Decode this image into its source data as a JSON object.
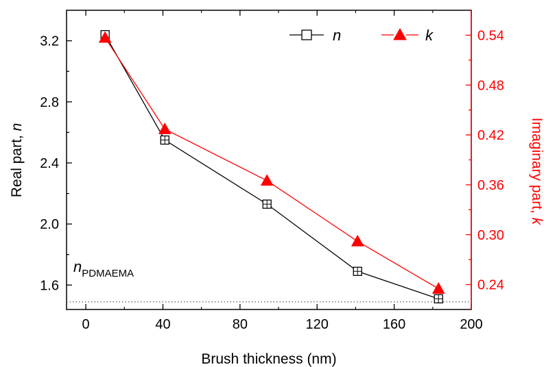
{
  "chart_data": {
    "type": "line",
    "x_axis": {
      "label": "Brush thickness (nm)",
      "range": [
        -10,
        200
      ],
      "ticks": [
        0,
        40,
        80,
        120,
        160,
        200
      ],
      "tick_labels": [
        "0",
        "40",
        "80",
        "120",
        "160",
        "200"
      ]
    },
    "y_axis_left": {
      "label_main": "Real part, ",
      "label_var": "n",
      "range": [
        1.44,
        3.4
      ],
      "ticks": [
        1.6,
        2.0,
        2.4,
        2.8,
        3.2
      ],
      "tick_labels": [
        "1.6",
        "2.0",
        "2.4",
        "2.8",
        "3.2"
      ],
      "color": "#000000"
    },
    "y_axis_right": {
      "label_main": "Imaginary part, ",
      "label_var": "k",
      "range": [
        0.21,
        0.57
      ],
      "ticks": [
        0.24,
        0.3,
        0.36,
        0.42,
        0.48,
        0.54
      ],
      "tick_labels": [
        "0.24",
        "0.30",
        "0.36",
        "0.42",
        "0.48",
        "0.54"
      ],
      "color": "#ff0000"
    },
    "series": [
      {
        "name": "n",
        "axis": "left",
        "color": "#000000",
        "marker": "open-square",
        "x": [
          10,
          41,
          94,
          141,
          183
        ],
        "y": [
          3.24,
          2.55,
          2.13,
          1.69,
          1.51
        ]
      },
      {
        "name": "k",
        "axis": "right",
        "color": "#ff0000",
        "marker": "filled-triangle",
        "x": [
          10,
          41,
          94,
          141,
          183
        ],
        "y": [
          0.537,
          0.427,
          0.365,
          0.292,
          0.235
        ]
      }
    ],
    "reference_line": {
      "axis": "left",
      "y": 1.49,
      "style": "dotted",
      "label_main": "n",
      "label_sub": "PDMAEMA"
    },
    "legend": {
      "position": "top-right"
    },
    "grid": false
  }
}
